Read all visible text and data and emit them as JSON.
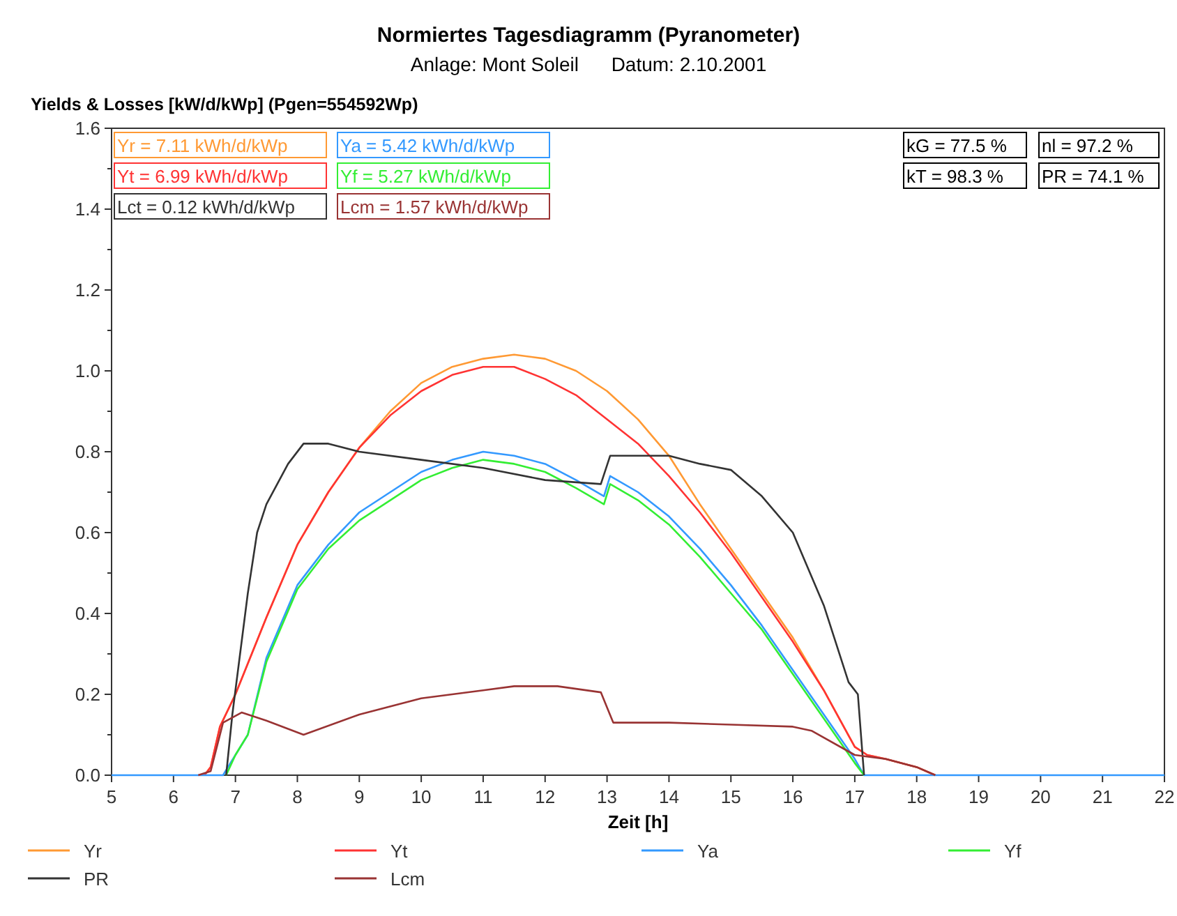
{
  "chart_data": {
    "type": "line",
    "title": "Normiertes Tagesdiagramm (Pyranometer)",
    "subtitle": "Anlage: Mont Soleil      Datum: 2.10.2001",
    "ylabel": "Yields & Losses [kW/d/kWp] (Pgen=554592Wp)",
    "xlabel": "Zeit [h]",
    "xlim": [
      5,
      22
    ],
    "xticks": [
      5,
      6,
      7,
      8,
      9,
      10,
      11,
      12,
      13,
      14,
      15,
      16,
      17,
      18,
      19,
      20,
      21,
      22
    ],
    "ylim": [
      0,
      1.6
    ],
    "yticks": [
      {
        "value": 0,
        "label": "0.0"
      },
      {
        "value": 0.1,
        "label": null
      },
      {
        "value": 0.2,
        "label": "0.2"
      },
      {
        "value": 0.3,
        "label": null
      },
      {
        "value": 0.4,
        "label": "0.4"
      },
      {
        "value": 0.5,
        "label": null
      },
      {
        "value": 0.6,
        "label": "0.6"
      },
      {
        "value": 0.7,
        "label": null
      },
      {
        "value": 0.8,
        "label": "0.8"
      },
      {
        "value": 0.9,
        "label": null
      },
      {
        "value": 1,
        "label": "1.0"
      },
      {
        "value": 1.1,
        "label": null
      },
      {
        "value": 1.2,
        "label": "1.2"
      },
      {
        "value": 1.3,
        "label": null
      },
      {
        "value": 1.4,
        "label": "1.4"
      },
      {
        "value": 1.5,
        "label": null
      },
      {
        "value": 1.6,
        "label": "1.6"
      }
    ],
    "grid": false,
    "legend": "bottom",
    "marker": "none",
    "line_style": "solid",
    "series": [
      {
        "name": "Yr",
        "color": "#ff9933",
        "x": [
          6.5,
          6.6,
          6.75,
          7,
          7.5,
          8,
          8.5,
          9,
          9.5,
          10,
          10.5,
          11,
          11.5,
          12,
          12.5,
          13,
          13.5,
          14,
          14.5,
          15,
          15.5,
          16,
          16.5,
          17,
          17.2,
          17.5,
          18,
          18.3
        ],
        "values": [
          0,
          0.02,
          0.12,
          0.2,
          0.39,
          0.57,
          0.7,
          0.81,
          0.9,
          0.97,
          1.01,
          1.03,
          1.04,
          1.03,
          1,
          0.95,
          0.88,
          0.79,
          0.67,
          0.56,
          0.45,
          0.34,
          0.21,
          0.07,
          0.05,
          0.04,
          0.02,
          0
        ]
      },
      {
        "name": "Yt",
        "color": "#ff3333",
        "x": [
          6.5,
          6.6,
          6.75,
          7,
          7.5,
          8,
          8.5,
          9,
          9.5,
          10,
          10.5,
          11,
          11.5,
          12,
          12.5,
          13,
          13.5,
          14,
          14.5,
          15,
          15.5,
          16,
          16.5,
          17,
          17.2,
          17.5,
          18,
          18.3
        ],
        "values": [
          0,
          0.02,
          0.12,
          0.2,
          0.39,
          0.57,
          0.7,
          0.81,
          0.89,
          0.95,
          0.99,
          1.01,
          1.01,
          0.98,
          0.94,
          0.88,
          0.82,
          0.74,
          0.65,
          0.55,
          0.44,
          0.33,
          0.21,
          0.07,
          0.05,
          0.04,
          0.02,
          0
        ]
      },
      {
        "name": "Ya",
        "color": "#3399ff",
        "x": [
          5,
          6.8,
          7,
          7.2,
          7.5,
          8,
          8.5,
          9,
          9.5,
          10,
          10.5,
          11,
          11.5,
          12,
          12.5,
          12.95,
          13.05,
          13.5,
          14,
          14.5,
          15,
          15.5,
          16,
          16.5,
          17,
          17.15,
          22
        ],
        "values": [
          0,
          0,
          0.05,
          0.1,
          0.29,
          0.47,
          0.57,
          0.65,
          0.7,
          0.75,
          0.78,
          0.8,
          0.79,
          0.77,
          0.73,
          0.69,
          0.74,
          0.7,
          0.64,
          0.56,
          0.47,
          0.37,
          0.26,
          0.15,
          0.04,
          0,
          0
        ]
      },
      {
        "name": "Yf",
        "color": "#33ee33",
        "x": [
          6.85,
          7,
          7.2,
          7.5,
          8,
          8.5,
          9,
          9.5,
          10,
          10.5,
          11,
          11.5,
          12,
          12.5,
          12.95,
          13.05,
          13.5,
          14,
          14.5,
          15,
          15.5,
          16,
          16.5,
          17,
          17.15
        ],
        "values": [
          0,
          0.05,
          0.1,
          0.28,
          0.46,
          0.56,
          0.63,
          0.68,
          0.73,
          0.76,
          0.78,
          0.77,
          0.75,
          0.71,
          0.67,
          0.72,
          0.68,
          0.62,
          0.54,
          0.45,
          0.36,
          0.25,
          0.14,
          0.03,
          0
        ]
      },
      {
        "name": "PR",
        "color": "#333333",
        "x": [
          6.85,
          6.95,
          7.2,
          7.35,
          7.5,
          7.85,
          8.1,
          8.5,
          9,
          10,
          11,
          12,
          12.9,
          13.05,
          14,
          14.5,
          15,
          15.5,
          16,
          16.5,
          16.9,
          17.05,
          17.15
        ],
        "values": [
          0,
          0.15,
          0.45,
          0.6,
          0.67,
          0.77,
          0.82,
          0.82,
          0.8,
          0.78,
          0.76,
          0.73,
          0.72,
          0.79,
          0.79,
          0.77,
          0.755,
          0.69,
          0.6,
          0.42,
          0.23,
          0.2,
          0
        ]
      },
      {
        "name": "Lcm",
        "color": "#993333",
        "x": [
          6.4,
          6.6,
          6.8,
          7.1,
          7.5,
          8.1,
          9,
          10,
          11,
          11.5,
          12.2,
          12.9,
          13.1,
          14,
          15,
          16,
          16.3,
          17,
          17.5,
          18,
          18.3
        ],
        "values": [
          0,
          0.01,
          0.13,
          0.155,
          0.135,
          0.1,
          0.15,
          0.19,
          0.21,
          0.22,
          0.22,
          0.205,
          0.13,
          0.13,
          0.125,
          0.12,
          0.11,
          0.05,
          0.04,
          0.02,
          0
        ]
      }
    ],
    "annotations": [
      "Yr = 7.11 kWh/d/kWp",
      "Yt = 6.99 kWh/d/kWp",
      "Ya = 5.42 kWh/d/kWp",
      "Yf = 5.27 kWh/d/kWp",
      "Lct = 0.12 kWh/d/kWp",
      "Lcm = 1.57 kWh/d/kWp",
      "kG = 77.5 %",
      "nl = 97.2 %",
      "kT = 98.3 %",
      "PR = 74.1 %"
    ]
  }
}
